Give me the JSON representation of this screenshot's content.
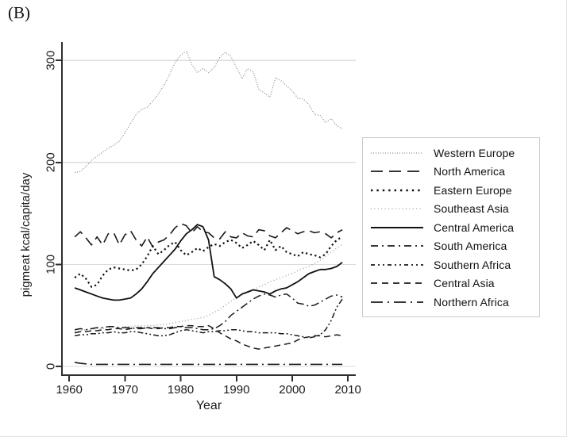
{
  "figure": {
    "panel_label": "(B)",
    "background": "#ffffff",
    "border_color": "#e2e2e2"
  },
  "chart_data": {
    "type": "line",
    "title": "",
    "xlabel": "Year",
    "ylabel": "pigmeat kcal/capita/day",
    "x_ticks": [
      1960,
      1970,
      1980,
      1990,
      2000,
      2010
    ],
    "y_ticks": [
      0,
      100,
      200,
      300
    ],
    "xlim": [
      1958.7,
      2011.4
    ],
    "ylim": [
      0,
      318
    ],
    "grid": "horizontal",
    "gridline_color": "#dcdcdc",
    "axis_color": "#2e2e2e",
    "text_color": "#1a1a1a",
    "legend_position": "right-outside",
    "x": [
      1961,
      1962,
      1963,
      1964,
      1965,
      1966,
      1967,
      1968,
      1969,
      1970,
      1971,
      1972,
      1973,
      1974,
      1975,
      1976,
      1977,
      1978,
      1979,
      1980,
      1981,
      1982,
      1983,
      1984,
      1985,
      1986,
      1987,
      1988,
      1989,
      1990,
      1991,
      1992,
      1993,
      1994,
      1995,
      1996,
      1997,
      1998,
      1999,
      2000,
      2001,
      2002,
      2003,
      2004,
      2005,
      2006,
      2007,
      2008,
      2009
    ],
    "series": [
      {
        "name": "Western Europe",
        "color": "#8f8f8f",
        "width": 1.3,
        "dash": "1 2",
        "legend_dash": "1 2",
        "legend_width": 1.3,
        "values": [
          190,
          191,
          196,
          202,
          206,
          210,
          214,
          217,
          221,
          229,
          238,
          247,
          252,
          254,
          260,
          267,
          276,
          286,
          298,
          305,
          309,
          296,
          288,
          292,
          288,
          293,
          303,
          308,
          304,
          293,
          282,
          292,
          289,
          272,
          268,
          264,
          283,
          280,
          275,
          270,
          263,
          262,
          257,
          247,
          246,
          239,
          243,
          236,
          233
        ]
      },
      {
        "name": "North America",
        "color": "#1a1a1a",
        "width": 1.6,
        "dash": "13 7",
        "legend_dash": "15 8",
        "legend_width": 1.8,
        "values": [
          127,
          132,
          126,
          119,
          127,
          119,
          130,
          131,
          119,
          129,
          133,
          124,
          118,
          127,
          117,
          122,
          124,
          129,
          136,
          140,
          138,
          131,
          137,
          132,
          131,
          126,
          125,
          132,
          127,
          126,
          131,
          128,
          127,
          134,
          133,
          128,
          126,
          131,
          136,
          133,
          130,
          132,
          133,
          131,
          132,
          130,
          126,
          131,
          134
        ]
      },
      {
        "name": "Eastern Europe",
        "color": "#111111",
        "width": 2.2,
        "dash": "2.2 3.6",
        "legend_dash": "2.4 5",
        "legend_width": 2.4,
        "values": [
          87,
          91,
          86,
          78,
          80,
          89,
          95,
          97,
          96,
          95,
          94,
          95,
          100,
          108,
          118,
          110,
          114,
          119,
          122,
          114,
          109,
          112,
          116,
          113,
          117,
          120,
          118,
          122,
          124,
          121,
          116,
          119,
          123,
          119,
          114,
          124,
          114,
          118,
          112,
          110,
          108,
          112,
          110,
          109,
          107,
          110,
          118,
          124,
          127
        ]
      },
      {
        "name": "Southeast Asia",
        "color": "#9a9a9a",
        "width": 1.3,
        "dash": "1 3",
        "legend_dash": "1 3.4",
        "legend_width": 1.3,
        "values": [
          34,
          35,
          36,
          36,
          37,
          37,
          38,
          38,
          38,
          39,
          39,
          40,
          40,
          40,
          40,
          41,
          41,
          42,
          43,
          44,
          45,
          46,
          47,
          48,
          50,
          53,
          56,
          60,
          64,
          67,
          70,
          72,
          75,
          78,
          80,
          83,
          85,
          87,
          89,
          91,
          94,
          96,
          98,
          101,
          104,
          108,
          112,
          116,
          120
        ]
      },
      {
        "name": "Central America",
        "color": "#111111",
        "width": 1.8,
        "dash": "",
        "legend_dash": "",
        "legend_width": 1.9,
        "values": [
          77,
          75,
          73,
          71,
          69,
          67,
          66,
          65,
          65,
          66,
          67,
          71,
          76,
          83,
          91,
          97,
          103,
          109,
          115,
          123,
          130,
          134,
          139,
          137,
          124,
          88,
          85,
          81,
          76,
          67,
          71,
          73,
          75,
          74,
          73,
          71,
          74,
          76,
          77,
          80,
          83,
          87,
          91,
          93,
          95,
          95,
          96,
          98,
          102
        ]
      },
      {
        "name": "South America",
        "color": "#1a1a1a",
        "width": 1.5,
        "dash": "10 4 2 4",
        "legend_dash": "9 5 2 5",
        "legend_width": 1.7,
        "values": [
          36,
          37,
          36,
          37,
          38,
          38,
          39,
          39,
          38,
          38,
          38,
          37,
          37,
          38,
          38,
          38,
          37,
          37,
          38,
          39,
          38,
          38,
          37,
          36,
          36,
          37,
          40,
          44,
          50,
          54,
          58,
          62,
          66,
          69,
          71,
          70,
          68,
          70,
          71,
          67,
          62,
          61,
          59,
          60,
          63,
          66,
          69,
          70,
          68
        ]
      },
      {
        "name": "Southern Africa",
        "color": "#1a1a1a",
        "width": 1.5,
        "dash": "7 3 2 3 2 3",
        "legend_dash": "5 4 2 4 2 4",
        "legend_width": 1.7,
        "values": [
          30,
          31,
          31,
          32,
          32,
          33,
          33,
          34,
          33,
          33,
          34,
          34,
          33,
          32,
          31,
          30,
          30,
          31,
          33,
          35,
          36,
          35,
          34,
          33,
          34,
          34,
          35,
          35,
          36,
          36,
          35,
          34,
          34,
          33,
          33,
          33,
          33,
          32,
          32,
          31,
          30,
          29,
          28,
          29,
          31,
          36,
          45,
          58,
          66
        ]
      },
      {
        "name": "Central Asia",
        "color": "#1a1a1a",
        "width": 1.5,
        "dash": "8 5",
        "legend_dash": "8 6",
        "legend_width": 1.7,
        "values": [
          33,
          34,
          34,
          35,
          35,
          36,
          36,
          37,
          37,
          36,
          37,
          38,
          38,
          38,
          37,
          37,
          38,
          38,
          39,
          39,
          40,
          40,
          39,
          39,
          40,
          37,
          33,
          30,
          27,
          25,
          22,
          20,
          18,
          17,
          18,
          19,
          20,
          21,
          22,
          23,
          26,
          28,
          29,
          30,
          30,
          29,
          30,
          31,
          30
        ]
      },
      {
        "name": "Northern Africa",
        "color": "#1a1a1a",
        "width": 1.6,
        "dash": "15 5 2 5",
        "legend_dash": "15 6 2 6",
        "legend_width": 1.7,
        "values": [
          4,
          3,
          2.5,
          2,
          2,
          2,
          2,
          2,
          2,
          2,
          2,
          2,
          2,
          2,
          2,
          2,
          2,
          2,
          2,
          2,
          2,
          2,
          2,
          2,
          2,
          2,
          2,
          2,
          2,
          2,
          2,
          2,
          2,
          2,
          2,
          2,
          2,
          2,
          2,
          2,
          2,
          2,
          2,
          2,
          2,
          2,
          2,
          2,
          2
        ]
      }
    ]
  },
  "legend": {
    "border_color": "#cccccc"
  }
}
